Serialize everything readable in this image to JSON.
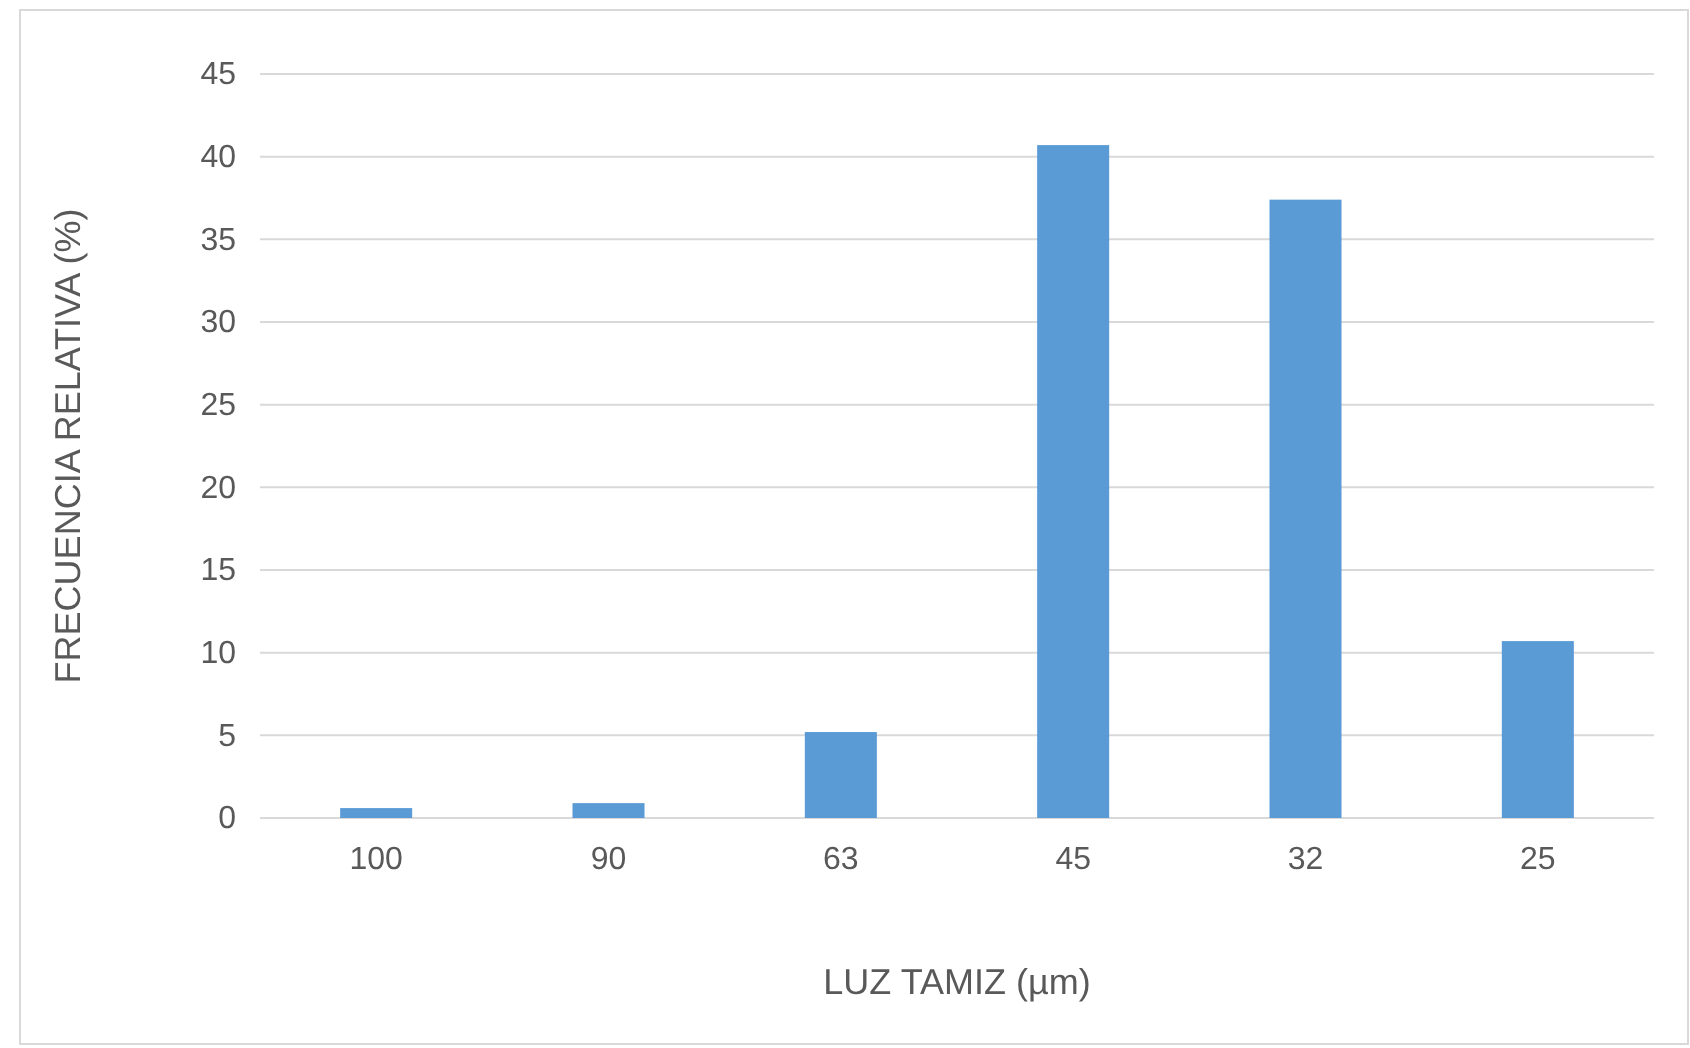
{
  "chart_data": {
    "type": "bar",
    "xlabel": "LUZ TAMIZ (µm)",
    "ylabel": "FRECUENCIA RELATIVA (%)",
    "categories": [
      "100",
      "90",
      "63",
      "45",
      "32",
      "25"
    ],
    "values": [
      0.6,
      0.9,
      5.2,
      40.7,
      37.4,
      10.7
    ],
    "color": "#5b9bd5",
    "ylim": [
      0,
      45
    ],
    "yticks": [
      0,
      5,
      10,
      15,
      20,
      25,
      30,
      35,
      40,
      45
    ],
    "grid": "y"
  }
}
